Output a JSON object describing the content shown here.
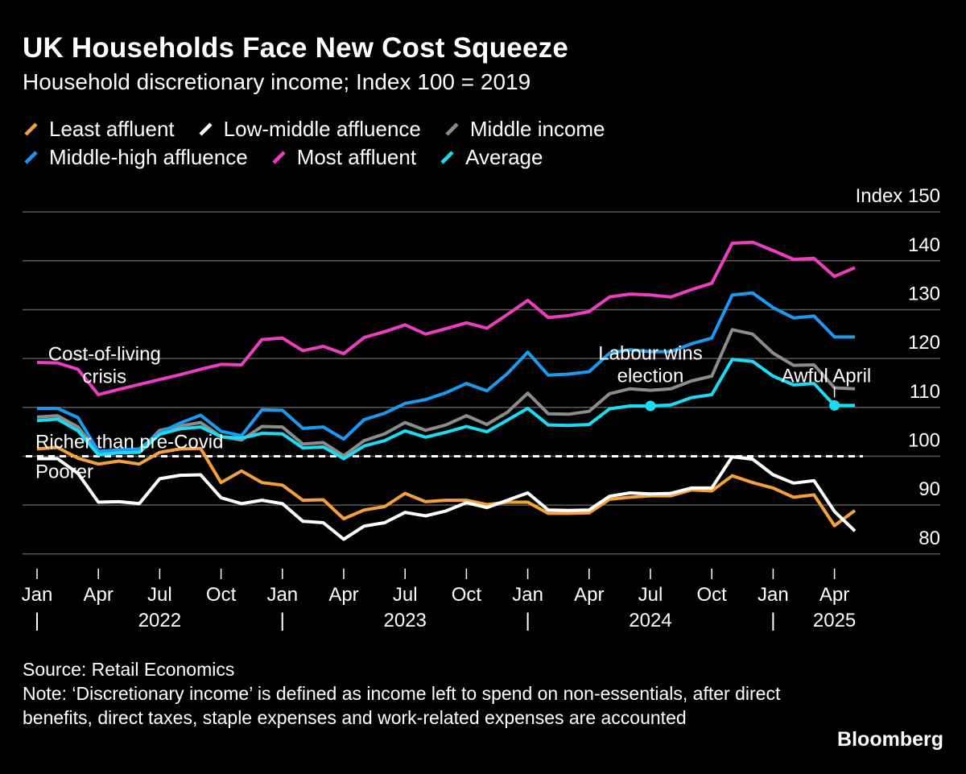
{
  "header": {
    "title": "UK Households Face New Cost Squeeze",
    "subtitle": "Household discretionary income; Index 100 = 2019"
  },
  "legend": [
    {
      "label": "Least affluent",
      "color": "#F6A03A"
    },
    {
      "label": "Low-middle affluence",
      "color": "#FFFFFF"
    },
    {
      "label": "Middle income",
      "color": "#8C8C8C"
    },
    {
      "label": "Middle-high affluence",
      "color": "#1A9AF0"
    },
    {
      "label": "Most affluent",
      "color": "#EE3DC1"
    },
    {
      "label": "Average",
      "color": "#1ADCF5"
    }
  ],
  "chart_data": {
    "type": "line",
    "title": "UK Households Face New Cost Squeeze",
    "subtitle": "Household discretionary income; Index 100 = 2019",
    "ylabel": "Index",
    "ylim": [
      77,
      152
    ],
    "yticks": [
      80,
      90,
      100,
      110,
      120,
      130,
      140,
      150
    ],
    "ytick_labels": [
      "80",
      "90",
      "100",
      "110",
      "120",
      "130",
      "140",
      "Index 150"
    ],
    "x": [
      "2022-01",
      "2022-02",
      "2022-03",
      "2022-04",
      "2022-05",
      "2022-06",
      "2022-07",
      "2022-08",
      "2022-09",
      "2022-10",
      "2022-11",
      "2022-12",
      "2023-01",
      "2023-02",
      "2023-03",
      "2023-04",
      "2023-05",
      "2023-06",
      "2023-07",
      "2023-08",
      "2023-09",
      "2023-10",
      "2023-11",
      "2023-12",
      "2024-01",
      "2024-02",
      "2024-03",
      "2024-04",
      "2024-05",
      "2024-06",
      "2024-07",
      "2024-08",
      "2024-09",
      "2024-10",
      "2024-11",
      "2024-12",
      "2025-01",
      "2025-02",
      "2025-03",
      "2025-04",
      "2025-05"
    ],
    "xtick_labels": [
      {
        "index": 0,
        "label": "Jan"
      },
      {
        "index": 3,
        "label": "Apr"
      },
      {
        "index": 6,
        "label": "Jul"
      },
      {
        "index": 9,
        "label": "Oct"
      },
      {
        "index": 12,
        "label": "Jan"
      },
      {
        "index": 15,
        "label": "Apr"
      },
      {
        "index": 18,
        "label": "Jul"
      },
      {
        "index": 21,
        "label": "Oct"
      },
      {
        "index": 24,
        "label": "Jan"
      },
      {
        "index": 27,
        "label": "Apr"
      },
      {
        "index": 30,
        "label": "Jul"
      },
      {
        "index": 33,
        "label": "Oct"
      },
      {
        "index": 36,
        "label": "Jan"
      },
      {
        "index": 39,
        "label": "Apr"
      }
    ],
    "year_labels": [
      {
        "index": 6,
        "label": "2022"
      },
      {
        "index": 18,
        "label": "2023"
      },
      {
        "index": 30,
        "label": "2024"
      },
      {
        "index": 39,
        "label": "2025"
      }
    ],
    "year_separators": [
      0,
      12,
      24,
      36
    ],
    "reference_line": {
      "y": 100,
      "label_above": "Richer than pre-Covid",
      "label_below": "Poorer"
    },
    "series": [
      {
        "name": "Least affluent",
        "color": "#F6A03A",
        "values": [
          101.5,
          101.8,
          99.6,
          98.4,
          99.0,
          98.4,
          100.8,
          101.5,
          101.6,
          94.6,
          97.0,
          94.6,
          94.1,
          91.0,
          91.1,
          87.2,
          89.0,
          89.7,
          92.4,
          90.7,
          91.0,
          91.0,
          90.1,
          90.6,
          90.6,
          88.3,
          88.3,
          88.4,
          91.2,
          91.6,
          91.9,
          91.9,
          93.1,
          92.9,
          96.0,
          94.6,
          93.5,
          91.6,
          92.1,
          85.8,
          88.9
        ]
      },
      {
        "name": "Low-middle affluence",
        "color": "#FFFFFF",
        "values": [
          99.5,
          99.5,
          96.5,
          90.6,
          90.7,
          90.3,
          95.4,
          96.1,
          96.2,
          91.5,
          90.3,
          91.0,
          90.3,
          86.7,
          86.4,
          83.0,
          85.7,
          86.4,
          88.5,
          87.8,
          88.8,
          90.5,
          89.5,
          91.0,
          92.5,
          89.0,
          88.9,
          89.0,
          91.8,
          92.5,
          92.3,
          92.4,
          93.5,
          93.5,
          99.9,
          99.4,
          96.2,
          94.5,
          95.0,
          88.7,
          84.7
        ]
      },
      {
        "name": "Middle income",
        "color": "#8C8C8C",
        "values": [
          108.0,
          108.3,
          106.0,
          100.7,
          101.3,
          101.0,
          105.3,
          106.2,
          106.9,
          104.0,
          103.3,
          106.1,
          106.0,
          102.5,
          102.8,
          100.1,
          103.2,
          104.6,
          106.9,
          105.3,
          106.4,
          108.3,
          106.5,
          109.0,
          112.9,
          108.7,
          108.6,
          109.2,
          112.8,
          113.8,
          113.5,
          113.8,
          115.4,
          116.4,
          125.9,
          125.0,
          121.1,
          118.6,
          118.7,
          114.0,
          113.8
        ]
      },
      {
        "name": "Middle-high affluence",
        "color": "#1A9AF0",
        "values": [
          109.8,
          109.8,
          107.9,
          101.0,
          101.3,
          101.5,
          104.8,
          106.8,
          108.4,
          105.1,
          104.2,
          109.5,
          109.4,
          105.7,
          106.0,
          103.5,
          107.5,
          108.8,
          110.8,
          111.6,
          113.0,
          114.9,
          113.4,
          116.9,
          121.3,
          116.6,
          116.8,
          117.3,
          121.1,
          121.8,
          121.4,
          121.4,
          123.0,
          124.2,
          133.0,
          133.4,
          130.4,
          128.3,
          128.7,
          124.4,
          124.4
        ]
      },
      {
        "name": "Most affluent",
        "color": "#EE3DC1",
        "values": [
          119.2,
          119.1,
          117.8,
          112.6,
          113.7,
          114.7,
          115.7,
          116.7,
          117.8,
          118.8,
          118.7,
          123.9,
          124.2,
          121.6,
          122.5,
          121.0,
          124.3,
          125.5,
          126.9,
          125.0,
          126.1,
          127.3,
          126.2,
          129.0,
          131.9,
          128.4,
          128.8,
          129.6,
          132.6,
          133.2,
          133.0,
          132.6,
          134.1,
          135.4,
          143.6,
          143.8,
          142.1,
          140.3,
          140.5,
          136.8,
          138.6
        ]
      },
      {
        "name": "Average",
        "color": "#1ADCF5",
        "values": [
          107.3,
          107.6,
          105.2,
          100.3,
          100.7,
          100.8,
          104.5,
          105.6,
          106.0,
          104.0,
          103.7,
          104.7,
          104.6,
          101.7,
          101.9,
          99.5,
          102.1,
          103.2,
          105.2,
          103.9,
          104.9,
          106.1,
          105.0,
          107.4,
          109.8,
          106.4,
          106.3,
          106.5,
          109.7,
          110.3,
          110.3,
          110.5,
          112.0,
          112.6,
          119.8,
          119.4,
          116.4,
          114.6,
          114.9,
          110.4,
          110.4
        ]
      }
    ],
    "markers": [
      {
        "series": "Average",
        "index": 30,
        "y": 110.3
      },
      {
        "series": "Average",
        "index": 39,
        "y": 110.4
      }
    ],
    "annotations": [
      {
        "text": [
          "Cost-of-living",
          "crisis"
        ],
        "index": 3.3,
        "y": 119.6
      },
      {
        "text": [
          "Labour wins",
          "election"
        ],
        "index": 30,
        "y": 119.8
      },
      {
        "text": [
          "Awful April"
        ],
        "index": 38.6,
        "y": 115.2
      }
    ]
  },
  "footer": {
    "source": "Source: Retail Economics",
    "note": "Note: ‘Discretionary income’ is defined as income left to spend on non-essentials, after direct benefits, direct taxes, staple expenses and work-related expenses are accounted"
  },
  "brand": "Bloomberg"
}
